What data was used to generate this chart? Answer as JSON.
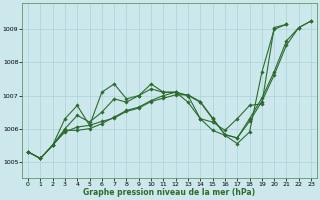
{
  "xlabel": "Graphe pression niveau de la mer (hPa)",
  "ylabel": "",
  "background_color": "#cce8ec",
  "grid_color": "#a8d4d8",
  "line_color": "#2d6b2d",
  "ylim": [
    1004.5,
    1009.8
  ],
  "xlim": [
    -0.5,
    23.5
  ],
  "yticks": [
    1005,
    1006,
    1007,
    1008,
    1009
  ],
  "xticks": [
    0,
    1,
    2,
    3,
    4,
    5,
    6,
    7,
    8,
    9,
    10,
    11,
    12,
    13,
    14,
    15,
    16,
    17,
    18,
    19,
    20,
    21,
    22,
    23
  ],
  "series": [
    [
      1005.3,
      1005.1,
      1005.5,
      1006.3,
      1006.7,
      1006.1,
      1007.1,
      1007.35,
      1006.9,
      1007.0,
      1007.35,
      1007.1,
      1007.1,
      1006.8,
      1006.3,
      1005.95,
      1005.8,
      1005.55,
      1005.9,
      1007.7,
      1009.0,
      1009.15,
      null,
      null
    ],
    [
      1005.3,
      1005.1,
      1005.5,
      1006.0,
      1006.4,
      1006.2,
      1006.5,
      1006.9,
      1006.8,
      1007.0,
      1007.2,
      1007.1,
      1007.1,
      1007.0,
      1006.3,
      1006.2,
      1005.95,
      1006.3,
      1006.7,
      1006.75,
      1009.05,
      1009.15,
      null,
      null
    ],
    [
      1005.3,
      1005.1,
      1005.5,
      1005.95,
      1005.95,
      1006.0,
      1006.15,
      1006.35,
      1006.55,
      1006.65,
      1006.85,
      1007.0,
      1007.1,
      1007.0,
      1006.8,
      1006.3,
      1005.82,
      1005.72,
      1006.3,
      1006.92,
      1007.72,
      1008.65,
      1009.05,
      1009.25
    ],
    [
      1005.3,
      1005.1,
      1005.5,
      1005.9,
      1006.05,
      1006.1,
      1006.22,
      1006.32,
      1006.52,
      1006.62,
      1006.82,
      1006.92,
      1007.02,
      1007.02,
      1006.82,
      1006.32,
      1005.82,
      1005.72,
      1006.22,
      1006.82,
      1007.62,
      1008.52,
      1009.05,
      1009.25
    ]
  ]
}
